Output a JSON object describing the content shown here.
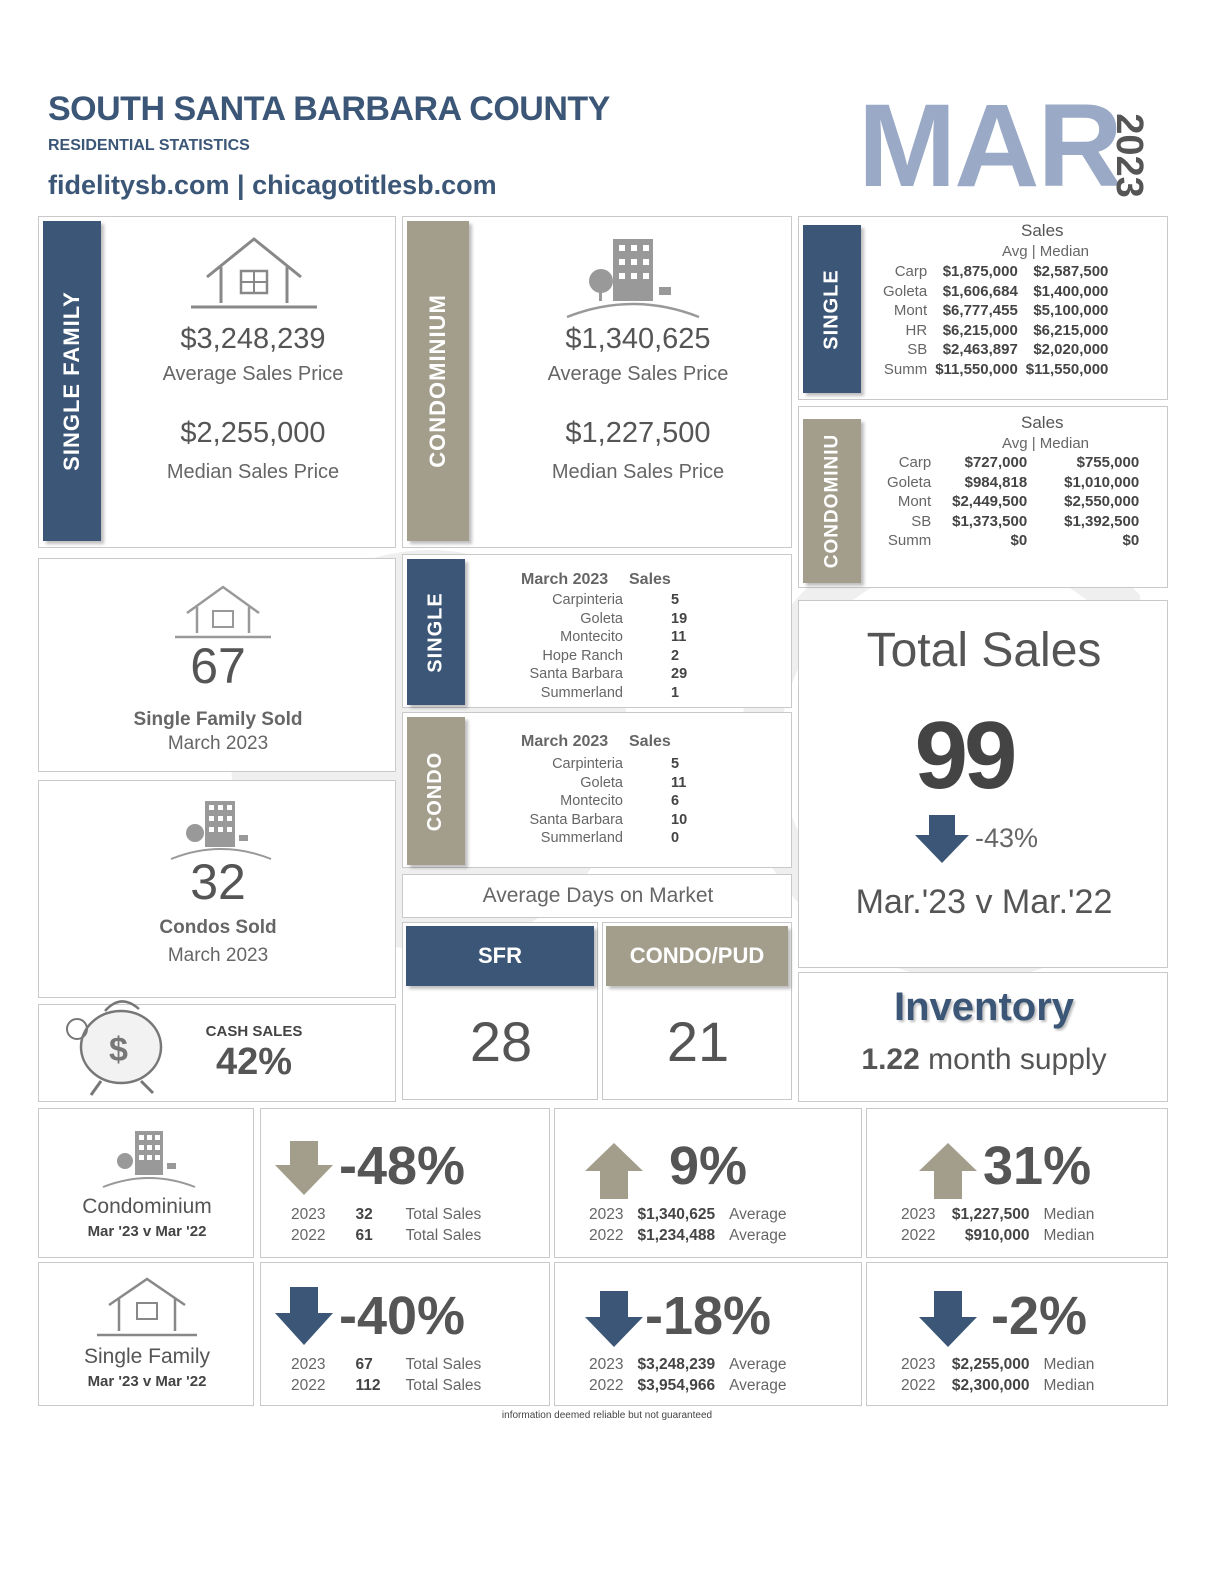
{
  "header": {
    "title": "SOUTH SANTA BARBARA COUNTY",
    "subtitle": "RESIDENTIAL STATISTICS",
    "websites": "fidelitysb.com | chicagotitlesb.com",
    "month": "MAR",
    "year": "2023"
  },
  "colors": {
    "navy": "#3b5676",
    "taupe": "#a39e8c",
    "month_blue": "#9aa9c6"
  },
  "single_family": {
    "label": "SINGLE FAMILY",
    "avg_price": "$3,248,239",
    "avg_label": "Average Sales Price",
    "median_price": "$2,255,000",
    "median_label": "Median Sales Price"
  },
  "condominium": {
    "label": "CONDOMINIUM",
    "avg_price": "$1,340,625",
    "avg_label": "Average Sales Price",
    "median_price": "$1,227,500",
    "median_label": "Median Sales Price"
  },
  "single_prices": {
    "label": "SINGLE",
    "heading": "Sales",
    "subheading": "Avg | Median",
    "rows": [
      {
        "area": "Carp",
        "avg": "$1,875,000",
        "median": "$2,587,500"
      },
      {
        "area": "Goleta",
        "avg": "$1,606,684",
        "median": "$1,400,000"
      },
      {
        "area": "Mont",
        "avg": "$6,777,455",
        "median": "$5,100,000"
      },
      {
        "area": "HR",
        "avg": "$6,215,000",
        "median": "$6,215,000"
      },
      {
        "area": "SB",
        "avg": "$2,463,897",
        "median": "$2,020,000"
      },
      {
        "area": "Summ",
        "avg": "$11,550,000",
        "median": "$11,550,000"
      }
    ]
  },
  "condo_prices": {
    "label": "CONDOMINIU",
    "heading": "Sales",
    "subheading": "Avg | Median",
    "rows": [
      {
        "area": "Carp",
        "avg": "$727,000",
        "median": "$755,000"
      },
      {
        "area": "Goleta",
        "avg": "$984,818",
        "median": "$1,010,000"
      },
      {
        "area": "Mont",
        "avg": "$2,449,500",
        "median": "$2,550,000"
      },
      {
        "area": "SB",
        "avg": "$1,373,500",
        "median": "$1,392,500"
      },
      {
        "area": "Summ",
        "avg": "$0",
        "median": "$0"
      }
    ]
  },
  "sf_sold": {
    "count": "67",
    "label": "Single Family Sold",
    "period": "March 2023"
  },
  "condo_sold": {
    "count": "32",
    "label": "Condos Sold",
    "period": "March 2023"
  },
  "single_sales": {
    "label": "SINGLE",
    "heading_period": "March 2023",
    "heading_sales": "Sales",
    "rows": [
      {
        "area": "Carpinteria",
        "count": "5"
      },
      {
        "area": "Goleta",
        "count": "19"
      },
      {
        "area": "Montecito",
        "count": "11"
      },
      {
        "area": "Hope Ranch",
        "count": "2"
      },
      {
        "area": "Santa Barbara",
        "count": "29"
      },
      {
        "area": "Summerland",
        "count": "1"
      }
    ]
  },
  "condo_sales": {
    "label": "CONDO",
    "heading_period": "March 2023",
    "heading_sales": "Sales",
    "rows": [
      {
        "area": "Carpinteria",
        "count": "5"
      },
      {
        "area": "Goleta",
        "count": "11"
      },
      {
        "area": "Montecito",
        "count": "6"
      },
      {
        "area": "Santa Barbara",
        "count": "10"
      },
      {
        "area": "Summerland",
        "count": "0"
      }
    ]
  },
  "total_sales": {
    "title": "Total Sales",
    "value": "99",
    "change": "-43%",
    "comparison": "Mar.'23 v Mar.'22"
  },
  "days_on_market": {
    "title": "Average Days on Market",
    "sfr_label": "SFR",
    "sfr_value": "28",
    "condo_label": "CONDO/PUD",
    "condo_value": "21"
  },
  "cash_sales": {
    "label": "CASH SALES",
    "value": "42%"
  },
  "inventory": {
    "title": "Inventory",
    "value": "1.22",
    "unit": "month supply"
  },
  "condo_compare": {
    "type_label": "Condominium",
    "period": "Mar '23 v Mar '22",
    "sales": {
      "pct": "-48%",
      "y1": "2023",
      "v1": "32",
      "l1": "Total Sales",
      "y2": "2022",
      "v2": "61",
      "l2": "Total Sales"
    },
    "average": {
      "pct": "9%",
      "y1": "2023",
      "v1": "$1,340,625",
      "l1": "Average",
      "y2": "2022",
      "v2": "$1,234,488",
      "l2": "Average"
    },
    "median": {
      "pct": "31%",
      "y1": "2023",
      "v1": "$1,227,500",
      "l1": "Median",
      "y2": "2022",
      "v2": "$910,000",
      "l2": "Median"
    }
  },
  "sf_compare": {
    "type_label": "Single Family",
    "period": "Mar '23 v Mar '22",
    "sales": {
      "pct": "-40%",
      "y1": "2023",
      "v1": "67",
      "l1": "Total Sales",
      "y2": "2022",
      "v2": "112",
      "l2": "Total Sales"
    },
    "average": {
      "pct": "-18%",
      "y1": "2023",
      "v1": "$3,248,239",
      "l1": "Average",
      "y2": "2022",
      "v2": "$3,954,966",
      "l2": "Average"
    },
    "median": {
      "pct": "-2%",
      "y1": "2023",
      "v1": "$2,255,000",
      "l1": "Median",
      "y2": "2022",
      "v2": "$2,300,000",
      "l2": "Median"
    }
  },
  "disclaimer": "information deemed reliable but not guaranteed"
}
